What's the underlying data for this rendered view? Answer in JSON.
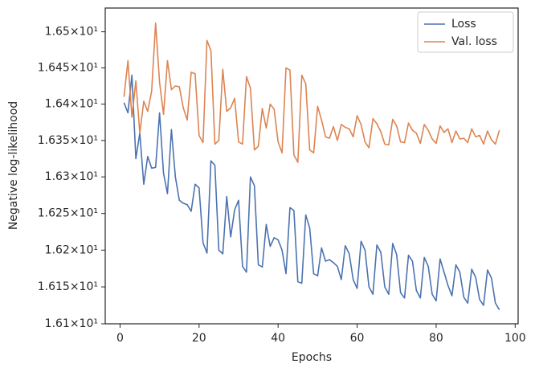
{
  "chart_data": {
    "type": "line",
    "xlabel": "Epochs",
    "ylabel": "Negative log-likelihood",
    "x": [
      1,
      2,
      3,
      4,
      5,
      6,
      7,
      8,
      9,
      10,
      11,
      12,
      13,
      14,
      15,
      16,
      17,
      18,
      19,
      20,
      21,
      22,
      23,
      24,
      25,
      26,
      27,
      28,
      29,
      30,
      31,
      32,
      33,
      34,
      35,
      36,
      37,
      38,
      39,
      40,
      41,
      42,
      43,
      44,
      45,
      46,
      47,
      48,
      49,
      50,
      51,
      52,
      53,
      54,
      55,
      56,
      57,
      58,
      59,
      60,
      61,
      62,
      63,
      64,
      65,
      66,
      67,
      68,
      69,
      70,
      71,
      72,
      73,
      74,
      75,
      76,
      77,
      78,
      79,
      80,
      81,
      82,
      83,
      84,
      85,
      86,
      87,
      88,
      89,
      90,
      91,
      92,
      93,
      94,
      95,
      96
    ],
    "series": [
      {
        "name": "Loss",
        "color": "#4c72b0",
        "values": [
          16.402,
          16.388,
          16.44,
          16.325,
          16.36,
          16.29,
          16.328,
          16.312,
          16.313,
          16.388,
          16.305,
          16.277,
          16.365,
          16.3,
          16.268,
          16.264,
          16.262,
          16.253,
          16.29,
          16.285,
          16.21,
          16.196,
          16.322,
          16.316,
          16.2,
          16.195,
          16.273,
          16.218,
          16.255,
          16.268,
          16.178,
          16.17,
          16.3,
          16.288,
          16.18,
          16.177,
          16.235,
          16.205,
          16.217,
          16.214,
          16.2,
          16.168,
          16.258,
          16.254,
          16.157,
          16.155,
          16.248,
          16.23,
          16.168,
          16.165,
          16.203,
          16.185,
          16.187,
          16.183,
          16.178,
          16.16,
          16.206,
          16.195,
          16.16,
          16.148,
          16.212,
          16.2,
          16.15,
          16.14,
          16.207,
          16.197,
          16.15,
          16.14,
          16.209,
          16.194,
          16.142,
          16.135,
          16.193,
          16.185,
          16.145,
          16.135,
          16.19,
          16.178,
          16.14,
          16.131,
          16.188,
          16.17,
          16.152,
          16.138,
          16.18,
          16.17,
          16.136,
          16.128,
          16.174,
          16.163,
          16.133,
          16.125,
          16.173,
          16.162,
          16.128,
          16.119
        ]
      },
      {
        "name": "Val. loss",
        "color": "#dd8452",
        "values": [
          16.41,
          16.46,
          16.382,
          16.432,
          16.36,
          16.404,
          16.39,
          16.418,
          16.512,
          16.43,
          16.386,
          16.46,
          16.42,
          16.425,
          16.424,
          16.395,
          16.378,
          16.444,
          16.442,
          16.357,
          16.347,
          16.488,
          16.474,
          16.345,
          16.35,
          16.448,
          16.39,
          16.395,
          16.408,
          16.348,
          16.345,
          16.438,
          16.422,
          16.337,
          16.342,
          16.394,
          16.367,
          16.4,
          16.393,
          16.348,
          16.333,
          16.45,
          16.447,
          16.33,
          16.32,
          16.44,
          16.428,
          16.337,
          16.333,
          16.397,
          16.378,
          16.355,
          16.353,
          16.369,
          16.35,
          16.372,
          16.368,
          16.366,
          16.355,
          16.384,
          16.372,
          16.348,
          16.34,
          16.38,
          16.373,
          16.362,
          16.345,
          16.344,
          16.379,
          16.37,
          16.348,
          16.347,
          16.374,
          16.364,
          16.36,
          16.346,
          16.372,
          16.364,
          16.352,
          16.346,
          16.37,
          16.361,
          16.366,
          16.347,
          16.363,
          16.352,
          16.353,
          16.347,
          16.366,
          16.355,
          16.357,
          16.345,
          16.363,
          16.351,
          16.345,
          16.364
        ]
      }
    ],
    "xlim": [
      -3.75,
      100.75
    ],
    "xticks": [
      0,
      20,
      40,
      60,
      80,
      100
    ],
    "ylim": [
      16.1,
      16.533
    ],
    "yscale": "log",
    "yticks": [
      {
        "value": 16.1,
        "label": "1.61×10¹"
      },
      {
        "value": 16.15,
        "label": "1.615×10¹"
      },
      {
        "value": 16.2,
        "label": "1.62×10¹"
      },
      {
        "value": 16.25,
        "label": "1.625×10¹"
      },
      {
        "value": 16.3,
        "label": "1.63×10¹"
      },
      {
        "value": 16.35,
        "label": "1.635×10¹"
      },
      {
        "value": 16.4,
        "label": "1.64×10¹"
      },
      {
        "value": 16.45,
        "label": "1.645×10¹"
      },
      {
        "value": 16.5,
        "label": "1.65×10¹"
      }
    ],
    "grid": false,
    "legend": "upper right"
  }
}
